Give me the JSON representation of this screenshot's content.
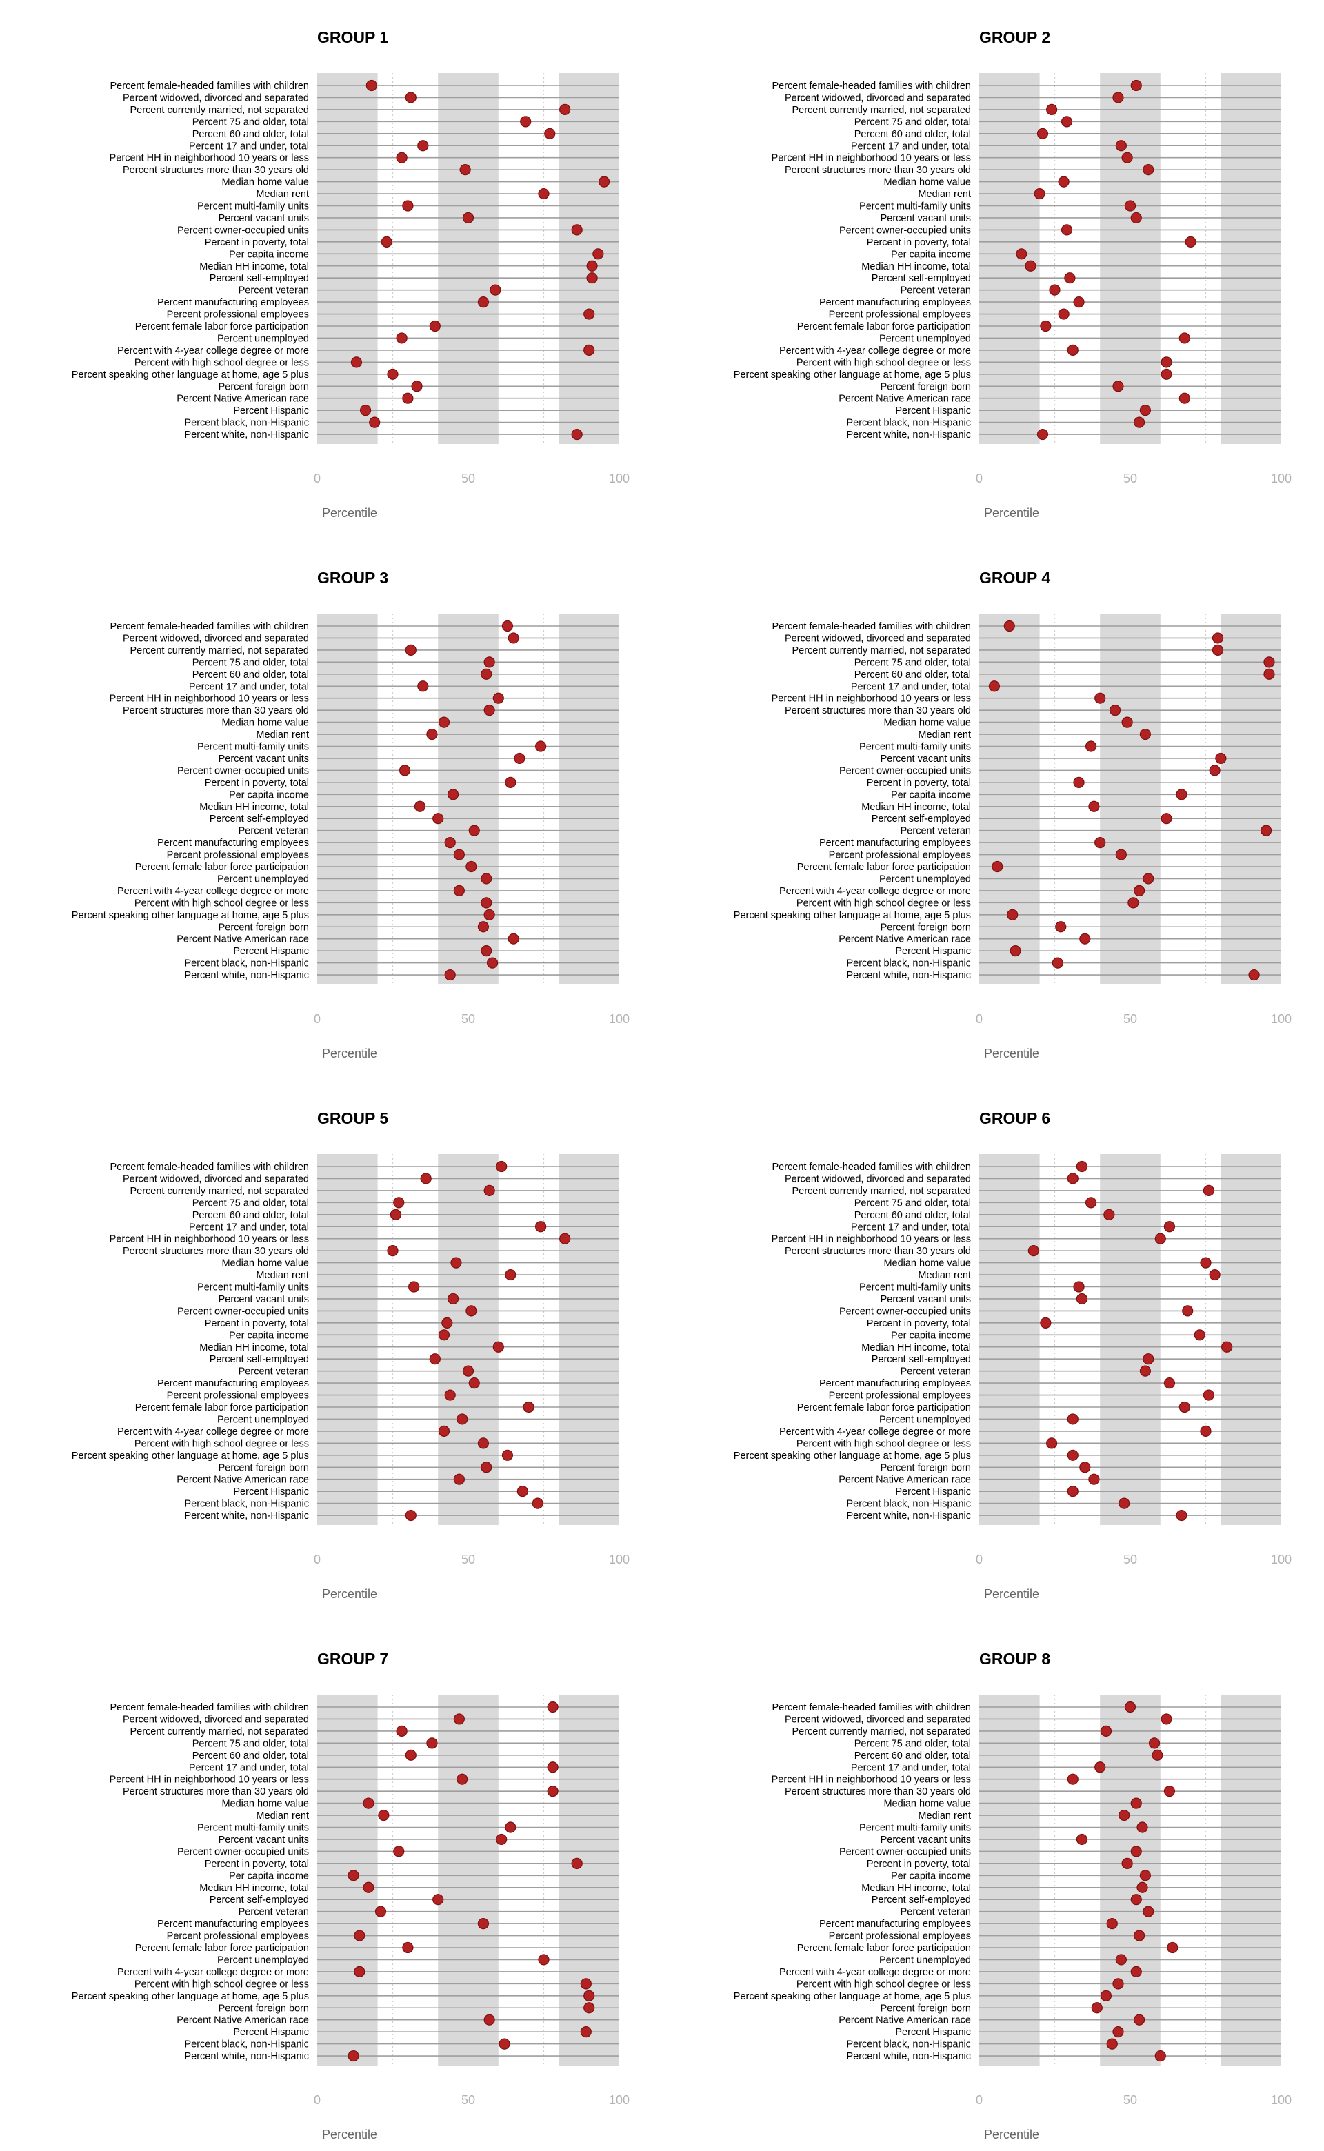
{
  "chart_data": [
    {
      "type": "scatter",
      "title": "GROUP 1",
      "xlabel": "Percentile",
      "ylabel": "",
      "xlim": [
        0,
        100
      ],
      "xticks": [
        "0",
        "50",
        "100"
      ],
      "shaded_bands": [
        [
          0,
          20
        ],
        [
          40,
          60
        ],
        [
          80,
          100
        ]
      ],
      "categories": [
        "Percent female-headed families with children",
        "Percent widowed, divorced and separated",
        "Percent currently married, not separated",
        "Percent 75 and older, total",
        "Percent 60 and older, total",
        "Percent 17 and under, total",
        "Percent HH in neighborhood 10 years or less",
        "Percent structures more than 30 years old",
        "Median home value",
        "Median rent",
        "Percent multi-family units",
        "Percent vacant units",
        "Percent owner-occupied units",
        "Percent in poverty, total",
        "Per capita income",
        "Median HH income, total",
        "Percent self-employed",
        "Percent veteran",
        "Percent manufacturing employees",
        "Percent professional employees",
        "Percent female labor force participation",
        "Percent unemployed",
        "Percent with 4-year college degree or more",
        "Percent with high school degree or less",
        "Percent speaking other language at home, age 5 plus",
        "Percent foreign born",
        "Percent Native American race",
        "Percent Hispanic",
        "Percent black, non-Hispanic",
        "Percent white, non-Hispanic"
      ],
      "values": [
        18,
        31,
        82,
        69,
        77,
        35,
        28,
        49,
        95,
        75,
        30,
        50,
        86,
        23,
        93,
        91,
        91,
        59,
        55,
        90,
        39,
        28,
        90,
        13,
        25,
        33,
        30,
        16,
        19,
        86
      ]
    },
    {
      "type": "scatter",
      "title": "GROUP 2",
      "xlabel": "Percentile",
      "ylabel": "",
      "xlim": [
        0,
        100
      ],
      "xticks": [
        "0",
        "50",
        "100"
      ],
      "shaded_bands": [
        [
          0,
          20
        ],
        [
          40,
          60
        ],
        [
          80,
          100
        ]
      ],
      "categories": [
        "Percent female-headed families with children",
        "Percent widowed, divorced and separated",
        "Percent currently married, not separated",
        "Percent 75 and older, total",
        "Percent 60 and older, total",
        "Percent 17 and under, total",
        "Percent HH in neighborhood 10 years or less",
        "Percent structures more than 30 years old",
        "Median home value",
        "Median rent",
        "Percent multi-family units",
        "Percent vacant units",
        "Percent owner-occupied units",
        "Percent in poverty, total",
        "Per capita income",
        "Median HH income, total",
        "Percent self-employed",
        "Percent veteran",
        "Percent manufacturing employees",
        "Percent professional employees",
        "Percent female labor force participation",
        "Percent unemployed",
        "Percent with 4-year college degree or more",
        "Percent with high school degree or less",
        "Percent speaking other language at home, age 5 plus",
        "Percent foreign born",
        "Percent Native American race",
        "Percent Hispanic",
        "Percent black, non-Hispanic",
        "Percent white, non-Hispanic"
      ],
      "values": [
        52,
        46,
        24,
        29,
        21,
        47,
        49,
        56,
        28,
        20,
        50,
        52,
        29,
        70,
        14,
        17,
        30,
        25,
        33,
        28,
        22,
        68,
        31,
        62,
        62,
        46,
        68,
        55,
        53,
        21
      ]
    },
    {
      "type": "scatter",
      "title": "GROUP 3",
      "xlabel": "Percentile",
      "ylabel": "",
      "xlim": [
        0,
        100
      ],
      "xticks": [
        "0",
        "50",
        "100"
      ],
      "shaded_bands": [
        [
          0,
          20
        ],
        [
          40,
          60
        ],
        [
          80,
          100
        ]
      ],
      "categories": [
        "Percent female-headed families with children",
        "Percent widowed, divorced and separated",
        "Percent currently married, not separated",
        "Percent 75 and older, total",
        "Percent 60 and older, total",
        "Percent 17 and under, total",
        "Percent HH in neighborhood 10 years or less",
        "Percent structures more than 30 years old",
        "Median home value",
        "Median rent",
        "Percent multi-family units",
        "Percent vacant units",
        "Percent owner-occupied units",
        "Percent in poverty, total",
        "Per capita income",
        "Median HH income, total",
        "Percent self-employed",
        "Percent veteran",
        "Percent manufacturing employees",
        "Percent professional employees",
        "Percent female labor force participation",
        "Percent unemployed",
        "Percent with 4-year college degree or more",
        "Percent with high school degree or less",
        "Percent speaking other language at home, age 5 plus",
        "Percent foreign born",
        "Percent Native American race",
        "Percent Hispanic",
        "Percent black, non-Hispanic",
        "Percent white, non-Hispanic"
      ],
      "values": [
        63,
        65,
        31,
        57,
        56,
        35,
        60,
        57,
        42,
        38,
        74,
        67,
        29,
        64,
        45,
        34,
        40,
        52,
        44,
        47,
        51,
        56,
        47,
        56,
        57,
        55,
        65,
        56,
        58,
        44
      ]
    },
    {
      "type": "scatter",
      "title": "GROUP 4",
      "xlabel": "Percentile",
      "ylabel": "",
      "xlim": [
        0,
        100
      ],
      "xticks": [
        "0",
        "50",
        "100"
      ],
      "shaded_bands": [
        [
          0,
          20
        ],
        [
          40,
          60
        ],
        [
          80,
          100
        ]
      ],
      "categories": [
        "Percent female-headed families with children",
        "Percent widowed, divorced and separated",
        "Percent currently married, not separated",
        "Percent 75 and older, total",
        "Percent 60 and older, total",
        "Percent 17 and under, total",
        "Percent HH in neighborhood 10 years or less",
        "Percent structures more than 30 years old",
        "Median home value",
        "Median rent",
        "Percent multi-family units",
        "Percent vacant units",
        "Percent owner-occupied units",
        "Percent in poverty, total",
        "Per capita income",
        "Median HH income, total",
        "Percent self-employed",
        "Percent veteran",
        "Percent manufacturing employees",
        "Percent professional employees",
        "Percent female labor force participation",
        "Percent unemployed",
        "Percent with 4-year college degree or more",
        "Percent with high school degree or less",
        "Percent speaking other language at home, age 5 plus",
        "Percent foreign born",
        "Percent Native American race",
        "Percent Hispanic",
        "Percent black, non-Hispanic",
        "Percent white, non-Hispanic"
      ],
      "values": [
        10,
        79,
        79,
        96,
        96,
        5,
        40,
        45,
        49,
        55,
        37,
        80,
        78,
        33,
        67,
        38,
        62,
        95,
        40,
        47,
        6,
        56,
        53,
        51,
        11,
        27,
        35,
        12,
        26,
        91
      ]
    },
    {
      "type": "scatter",
      "title": "GROUP 5",
      "xlabel": "Percentile",
      "ylabel": "",
      "xlim": [
        0,
        100
      ],
      "xticks": [
        "0",
        "50",
        "100"
      ],
      "shaded_bands": [
        [
          0,
          20
        ],
        [
          40,
          60
        ],
        [
          80,
          100
        ]
      ],
      "categories": [
        "Percent female-headed families with children",
        "Percent widowed, divorced and separated",
        "Percent currently married, not separated",
        "Percent 75 and older, total",
        "Percent 60 and older, total",
        "Percent 17 and under, total",
        "Percent HH in neighborhood 10 years or less",
        "Percent structures more than 30 years old",
        "Median home value",
        "Median rent",
        "Percent multi-family units",
        "Percent vacant units",
        "Percent owner-occupied units",
        "Percent in poverty, total",
        "Per capita income",
        "Median HH income, total",
        "Percent self-employed",
        "Percent veteran",
        "Percent manufacturing employees",
        "Percent professional employees",
        "Percent female labor force participation",
        "Percent unemployed",
        "Percent with 4-year college degree or more",
        "Percent with high school degree or less",
        "Percent speaking other language at home, age 5 plus",
        "Percent foreign born",
        "Percent Native American race",
        "Percent Hispanic",
        "Percent black, non-Hispanic",
        "Percent white, non-Hispanic"
      ],
      "values": [
        61,
        36,
        57,
        27,
        26,
        74,
        82,
        25,
        46,
        64,
        32,
        45,
        51,
        43,
        42,
        60,
        39,
        50,
        52,
        44,
        70,
        48,
        42,
        55,
        63,
        56,
        47,
        68,
        73,
        31
      ]
    },
    {
      "type": "scatter",
      "title": "GROUP 6",
      "xlabel": "Percentile",
      "ylabel": "",
      "xlim": [
        0,
        100
      ],
      "xticks": [
        "0",
        "50",
        "100"
      ],
      "shaded_bands": [
        [
          0,
          20
        ],
        [
          40,
          60
        ],
        [
          80,
          100
        ]
      ],
      "categories": [
        "Percent female-headed families with children",
        "Percent widowed, divorced and separated",
        "Percent currently married, not separated",
        "Percent 75 and older, total",
        "Percent 60 and older, total",
        "Percent 17 and under, total",
        "Percent HH in neighborhood 10 years or less",
        "Percent structures more than 30 years old",
        "Median home value",
        "Median rent",
        "Percent multi-family units",
        "Percent vacant units",
        "Percent owner-occupied units",
        "Percent in poverty, total",
        "Per capita income",
        "Median HH income, total",
        "Percent self-employed",
        "Percent veteran",
        "Percent manufacturing employees",
        "Percent professional employees",
        "Percent female labor force participation",
        "Percent unemployed",
        "Percent with 4-year college degree or more",
        "Percent with high school degree or less",
        "Percent speaking other language at home, age 5 plus",
        "Percent foreign born",
        "Percent Native American race",
        "Percent Hispanic",
        "Percent black, non-Hispanic",
        "Percent white, non-Hispanic"
      ],
      "values": [
        34,
        31,
        76,
        37,
        43,
        63,
        60,
        18,
        75,
        78,
        33,
        34,
        69,
        22,
        73,
        82,
        56,
        55,
        63,
        76,
        68,
        31,
        75,
        24,
        31,
        35,
        38,
        31,
        48,
        67
      ]
    },
    {
      "type": "scatter",
      "title": "GROUP 7",
      "xlabel": "Percentile",
      "ylabel": "",
      "xlim": [
        0,
        100
      ],
      "xticks": [
        "0",
        "50",
        "100"
      ],
      "shaded_bands": [
        [
          0,
          20
        ],
        [
          40,
          60
        ],
        [
          80,
          100
        ]
      ],
      "categories": [
        "Percent female-headed families with children",
        "Percent widowed, divorced and separated",
        "Percent currently married, not separated",
        "Percent 75 and older, total",
        "Percent 60 and older, total",
        "Percent 17 and under, total",
        "Percent HH in neighborhood 10 years or less",
        "Percent structures more than 30 years old",
        "Median home value",
        "Median rent",
        "Percent multi-family units",
        "Percent vacant units",
        "Percent owner-occupied units",
        "Percent in poverty, total",
        "Per capita income",
        "Median HH income, total",
        "Percent self-employed",
        "Percent veteran",
        "Percent manufacturing employees",
        "Percent professional employees",
        "Percent female labor force participation",
        "Percent unemployed",
        "Percent with 4-year college degree or more",
        "Percent with high school degree or less",
        "Percent speaking other language at home, age 5 plus",
        "Percent foreign born",
        "Percent Native American race",
        "Percent Hispanic",
        "Percent black, non-Hispanic",
        "Percent white, non-Hispanic"
      ],
      "values": [
        78,
        47,
        28,
        38,
        31,
        78,
        48,
        78,
        17,
        22,
        64,
        61,
        27,
        86,
        12,
        17,
        40,
        21,
        55,
        14,
        30,
        75,
        14,
        89,
        90,
        90,
        57,
        89,
        62,
        12
      ]
    },
    {
      "type": "scatter",
      "title": "GROUP 8",
      "xlabel": "Percentile",
      "ylabel": "",
      "xlim": [
        0,
        100
      ],
      "xticks": [
        "0",
        "50",
        "100"
      ],
      "shaded_bands": [
        [
          0,
          20
        ],
        [
          40,
          60
        ],
        [
          80,
          100
        ]
      ],
      "categories": [
        "Percent female-headed families with children",
        "Percent widowed, divorced and separated",
        "Percent currently married, not separated",
        "Percent 75 and older, total",
        "Percent 60 and older, total",
        "Percent 17 and under, total",
        "Percent HH in neighborhood 10 years or less",
        "Percent structures more than 30 years old",
        "Median home value",
        "Median rent",
        "Percent multi-family units",
        "Percent vacant units",
        "Percent owner-occupied units",
        "Percent in poverty, total",
        "Per capita income",
        "Median HH income, total",
        "Percent self-employed",
        "Percent veteran",
        "Percent manufacturing employees",
        "Percent professional employees",
        "Percent female labor force participation",
        "Percent unemployed",
        "Percent with 4-year college degree or more",
        "Percent with high school degree or less",
        "Percent speaking other language at home, age 5 plus",
        "Percent foreign born",
        "Percent Native American race",
        "Percent Hispanic",
        "Percent black, non-Hispanic",
        "Percent white, non-Hispanic"
      ],
      "values": [
        50,
        62,
        42,
        58,
        59,
        40,
        31,
        63,
        52,
        48,
        54,
        34,
        52,
        49,
        55,
        54,
        52,
        56,
        44,
        53,
        64,
        47,
        52,
        46,
        42,
        39,
        53,
        46,
        44,
        60
      ]
    }
  ],
  "style": {
    "point_color": "#b22222",
    "point_stroke": "#7a1010",
    "band_color": "#d9d9d9",
    "row_line_color": "#9e9e9e",
    "tick_color": "#b3b3b3",
    "axis_title_color": "#666666"
  }
}
